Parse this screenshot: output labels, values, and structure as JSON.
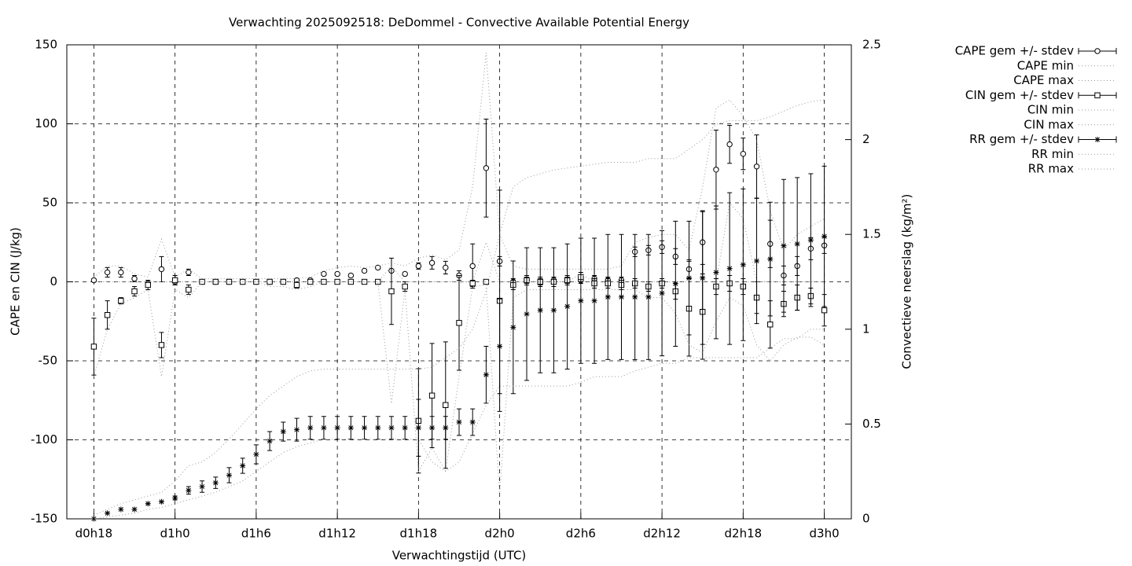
{
  "chart_data": {
    "type": "errorbar",
    "title": "Verwachting 2025092518: DeDommel - Convective Available Potential Energy",
    "xlabel": "Verwachtingstijd (UTC)",
    "ylabel": "CAPE en CIN (J/kg)",
    "y2label": "Convectieve neerslag (kg/m²)",
    "x": [
      18,
      19,
      20,
      21,
      22,
      23,
      24,
      25,
      26,
      27,
      28,
      29,
      30,
      31,
      32,
      33,
      34,
      35,
      36,
      37,
      38,
      39,
      40,
      41,
      42,
      43,
      44,
      45,
      46,
      47,
      48,
      49,
      50,
      51,
      52,
      53,
      54,
      55,
      56,
      57,
      58,
      59,
      60,
      61,
      62,
      63,
      64,
      65,
      66,
      67,
      68,
      69,
      70,
      71,
      72
    ],
    "xlim": [
      16,
      74
    ],
    "xticks": [
      {
        "value": 18,
        "label": "d0h18"
      },
      {
        "value": 24,
        "label": "d1h0"
      },
      {
        "value": 30,
        "label": "d1h6"
      },
      {
        "value": 36,
        "label": "d1h12"
      },
      {
        "value": 42,
        "label": "d1h18"
      },
      {
        "value": 48,
        "label": "d2h0"
      },
      {
        "value": 54,
        "label": "d2h6"
      },
      {
        "value": 60,
        "label": "d2h12"
      },
      {
        "value": 66,
        "label": "d2h18"
      },
      {
        "value": 72,
        "label": "d3h0"
      }
    ],
    "ylim": [
      -150,
      150
    ],
    "yticks": [
      -150,
      -100,
      -50,
      0,
      50,
      100,
      150
    ],
    "y2lim": [
      0,
      2.5
    ],
    "y2ticks": [
      0,
      0.5,
      1,
      1.5,
      2,
      2.5
    ],
    "grid": true,
    "legend": "outside-right",
    "series": [
      {
        "name": "CAPE gem +/- stdev",
        "color": "#000000",
        "style": "errorbars",
        "marker": "circle",
        "values": [
          1,
          6,
          6,
          2,
          -1,
          8,
          0,
          6,
          0,
          0,
          0,
          0,
          0,
          0,
          0,
          1,
          1,
          5,
          5,
          4,
          7,
          9,
          7,
          5,
          10,
          12,
          9,
          4,
          10,
          72,
          13,
          0,
          1,
          0,
          1,
          1,
          1,
          2,
          1,
          1,
          19,
          20,
          22,
          16,
          8,
          25,
          71,
          87,
          81,
          73,
          24,
          4,
          10,
          21,
          23
        ],
        "errors": [
          1,
          3,
          3,
          2,
          1,
          8,
          2,
          2,
          0,
          0,
          0,
          0,
          0,
          0,
          0,
          0,
          0,
          1,
          1,
          1,
          1,
          1,
          1,
          1,
          2,
          4,
          4,
          3,
          14,
          31,
          3,
          2,
          2,
          2,
          2,
          2,
          2,
          2,
          2,
          2,
          3,
          3,
          4,
          5,
          6,
          20,
          25,
          12,
          10,
          20,
          15,
          6,
          6,
          7,
          5
        ]
      },
      {
        "name": "CAPE min",
        "color": "#999999",
        "style": "dotted",
        "values": [
          0,
          0,
          0,
          0,
          0,
          0,
          0,
          0,
          0,
          0,
          0,
          0,
          0,
          0,
          0,
          0,
          0,
          0,
          0,
          0,
          0,
          0,
          0,
          0,
          0,
          0,
          0,
          0,
          0,
          25,
          0,
          0,
          0,
          0,
          0,
          0,
          0,
          0,
          0,
          0,
          0,
          0,
          0,
          0,
          0,
          0,
          0,
          50,
          40,
          0,
          0,
          0,
          0,
          0,
          0
        ]
      },
      {
        "name": "CAPE max",
        "color": "#999999",
        "style": "dotted",
        "values": [
          3,
          10,
          10,
          5,
          3,
          27,
          3,
          8,
          2,
          2,
          2,
          2,
          2,
          2,
          2,
          2,
          3,
          7,
          9,
          10,
          9,
          10,
          12,
          10,
          15,
          17,
          14,
          20,
          60,
          145,
          30,
          10,
          8,
          8,
          8,
          8,
          8,
          8,
          8,
          10,
          25,
          28,
          30,
          30,
          20,
          60,
          110,
          115,
          105,
          90,
          45,
          20,
          30,
          35,
          40
        ]
      },
      {
        "name": "CIN gem +/- stdev",
        "color": "#000000",
        "style": "errorbars",
        "marker": "square",
        "values": [
          -41,
          -21,
          -12,
          -6,
          -2,
          -40,
          1,
          -5,
          0,
          0,
          0,
          0,
          0,
          0,
          0,
          -2,
          0,
          0,
          0,
          0,
          0,
          0,
          -6,
          -3,
          -88,
          -72,
          -78,
          -26,
          -1,
          0,
          -12,
          -2,
          1,
          0,
          0,
          1,
          3,
          -1,
          -1,
          -2,
          -1,
          -3,
          -1,
          -6,
          -17,
          -19,
          -3,
          -1,
          -3,
          -10,
          -27,
          -14,
          -10,
          -9,
          -18
        ],
        "errors": [
          18,
          9,
          2,
          3,
          3,
          8,
          3,
          3,
          0,
          0,
          0,
          0,
          0,
          0,
          0,
          2,
          0,
          0,
          0,
          0,
          0,
          0,
          21,
          3,
          33,
          33,
          40,
          30,
          2,
          1,
          70,
          3,
          3,
          3,
          3,
          3,
          3,
          3,
          3,
          3,
          3,
          3,
          3,
          5,
          30,
          30,
          5,
          5,
          5,
          10,
          15,
          8,
          8,
          5,
          10
        ]
      },
      {
        "name": "CIN min",
        "color": "#999999",
        "style": "dotted",
        "values": [
          -60,
          -30,
          -14,
          -10,
          -5,
          -60,
          -5,
          -10,
          0,
          0,
          0,
          0,
          0,
          -3,
          -3,
          -5,
          -3,
          0,
          0,
          0,
          0,
          0,
          -77,
          -5,
          -120,
          -105,
          -120,
          -60,
          -3,
          -2,
          -135,
          -10,
          -5,
          -5,
          -5,
          -5,
          -5,
          -5,
          -5,
          -5,
          -5,
          -10,
          -10,
          -20,
          -40,
          -45,
          -25,
          -10,
          -15,
          -40,
          -50,
          -40,
          -35,
          -35,
          -40
        ]
      },
      {
        "name": "CIN max",
        "color": "#999999",
        "style": "dotted",
        "values": [
          0,
          0,
          0,
          0,
          0,
          0,
          0,
          0,
          0,
          0,
          0,
          0,
          0,
          0,
          0,
          0,
          0,
          0,
          0,
          0,
          0,
          0,
          10,
          0,
          0,
          0,
          0,
          0,
          0,
          0,
          0,
          0,
          0,
          0,
          0,
          0,
          5,
          0,
          0,
          0,
          0,
          0,
          0,
          0,
          0,
          0,
          0,
          0,
          0,
          0,
          0,
          0,
          0,
          0,
          0
        ]
      },
      {
        "name": "RR gem +/- stdev",
        "color": "#000000",
        "style": "errorbars",
        "marker": "star",
        "axis": "y2",
        "values": [
          0,
          0.03,
          0.05,
          0.05,
          0.08,
          0.09,
          0.11,
          0.15,
          0.17,
          0.19,
          0.23,
          0.28,
          0.34,
          0.41,
          0.46,
          0.47,
          0.48,
          0.48,
          0.48,
          0.48,
          0.48,
          0.48,
          0.48,
          0.48,
          0.48,
          0.48,
          0.48,
          0.51,
          0.51,
          0.76,
          0.91,
          1.01,
          1.08,
          1.1,
          1.1,
          1.12,
          1.15,
          1.15,
          1.17,
          1.17,
          1.17,
          1.17,
          1.19,
          1.24,
          1.27,
          1.27,
          1.3,
          1.32,
          1.34,
          1.36,
          1.37,
          1.44,
          1.45,
          1.47,
          1.49
        ],
        "errors": [
          0,
          0,
          0,
          0,
          0,
          0,
          0.01,
          0.02,
          0.03,
          0.03,
          0.04,
          0.04,
          0.05,
          0.05,
          0.05,
          0.06,
          0.06,
          0.06,
          0.06,
          0.06,
          0.06,
          0.06,
          0.06,
          0.06,
          0.15,
          0.06,
          0.06,
          0.07,
          0.07,
          0.15,
          0.25,
          0.35,
          0.35,
          0.33,
          0.33,
          0.33,
          0.33,
          0.33,
          0.33,
          0.33,
          0.33,
          0.33,
          0.33,
          0.33,
          0.3,
          0.35,
          0.35,
          0.4,
          0.4,
          0.33,
          0.3,
          0.35,
          0.35,
          0.35,
          0.37
        ]
      },
      {
        "name": "RR min",
        "color": "#999999",
        "style": "dotted",
        "axis": "y2",
        "values": [
          0,
          0.01,
          0.02,
          0.03,
          0.05,
          0.06,
          0.08,
          0.1,
          0.12,
          0.14,
          0.17,
          0.2,
          0.25,
          0.3,
          0.35,
          0.38,
          0.4,
          0.42,
          0.42,
          0.42,
          0.42,
          0.42,
          0.42,
          0.42,
          0.42,
          0.3,
          0.25,
          0.3,
          0.45,
          0.6,
          0.7,
          0.7,
          0.7,
          0.7,
          0.7,
          0.7,
          0.72,
          0.75,
          0.75,
          0.75,
          0.78,
          0.8,
          0.82,
          0.82,
          0.85,
          0.85,
          0.85,
          0.85,
          0.85,
          0.85,
          0.9,
          0.95,
          0.95,
          1.0,
          1.0
        ]
      },
      {
        "name": "RR max",
        "color": "#999999",
        "style": "dotted",
        "axis": "y2",
        "values": [
          0.02,
          0.05,
          0.08,
          0.1,
          0.12,
          0.14,
          0.2,
          0.28,
          0.3,
          0.35,
          0.42,
          0.5,
          0.58,
          0.65,
          0.7,
          0.75,
          0.78,
          0.79,
          0.79,
          0.79,
          0.79,
          0.79,
          0.79,
          0.79,
          0.79,
          0.8,
          0.85,
          0.9,
          1.0,
          1.2,
          1.5,
          1.75,
          1.8,
          1.82,
          1.84,
          1.85,
          1.86,
          1.87,
          1.88,
          1.88,
          1.88,
          1.9,
          1.9,
          1.9,
          1.95,
          2.0,
          2.08,
          2.1,
          2.1,
          2.1,
          2.12,
          2.15,
          2.18,
          2.2,
          2.21
        ]
      }
    ]
  }
}
